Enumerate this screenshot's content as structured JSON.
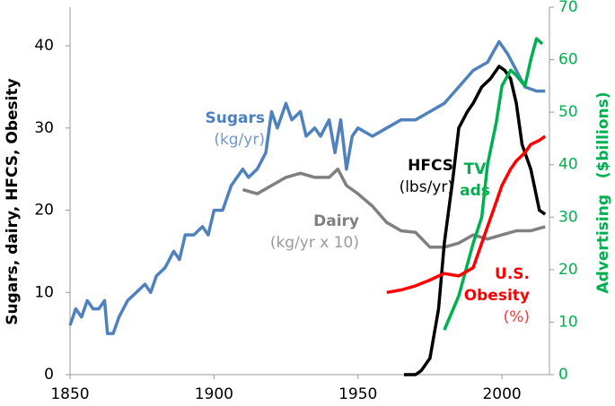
{
  "chart_data": {
    "type": "line",
    "y_label": "Sugars, dairy, HFCS, Obesity",
    "y2_label": "Advertising   ($billions)",
    "xlim": [
      1850,
      2016.5
    ],
    "xticks": [
      1850,
      1900,
      1950,
      2000
    ],
    "ylim": [
      0,
      44.7
    ],
    "yticks": [
      0,
      10,
      20,
      30,
      40
    ],
    "y2lim": [
      0,
      70
    ],
    "y2ticks": [
      0,
      10,
      20,
      30,
      40,
      50,
      60,
      70
    ],
    "y2_color": "#00b050",
    "series": [
      {
        "name": "Sugars",
        "unit": "(kg/yr)",
        "color": "#4f81bd",
        "unit_color": "#6f9ad0",
        "x": [
          1850,
          1852,
          1854,
          1856,
          1858,
          1860,
          1862,
          1863,
          1865,
          1867,
          1870,
          1873,
          1876,
          1878,
          1880,
          1883,
          1886,
          1888,
          1890,
          1893,
          1896,
          1898,
          1900,
          1903,
          1906,
          1910,
          1912,
          1915,
          1918,
          1920,
          1922,
          1925,
          1927,
          1930,
          1932,
          1935,
          1937,
          1940,
          1942,
          1944,
          1946,
          1948,
          1950,
          1955,
          1960,
          1965,
          1970,
          1975,
          1980,
          1985,
          1990,
          1995,
          1999,
          2002,
          2005,
          2008,
          2012,
          2015
        ],
        "values": [
          6,
          8,
          7,
          9,
          8,
          8,
          9,
          5,
          5,
          7,
          9,
          10,
          11,
          10,
          12,
          13,
          15,
          14,
          17,
          17,
          18,
          17,
          20,
          20,
          23,
          25,
          24,
          25,
          27,
          32,
          30,
          33,
          31,
          32,
          29,
          30,
          29,
          31,
          27,
          31,
          25,
          29,
          30,
          29,
          30,
          31,
          31,
          32,
          33,
          35,
          37,
          38,
          40.5,
          39,
          37,
          35,
          34.5,
          34.5
        ]
      },
      {
        "name": "Dairy",
        "unit": "(kg/yr x 10)",
        "color": "#808080",
        "unit_color": "#999999",
        "x": [
          1910,
          1915,
          1920,
          1925,
          1930,
          1935,
          1940,
          1943,
          1946,
          1950,
          1955,
          1960,
          1965,
          1970,
          1975,
          1980,
          1985,
          1990,
          1995,
          2000,
          2005,
          2010,
          2015
        ],
        "values": [
          22.5,
          22,
          23,
          24,
          24.5,
          24,
          24,
          25,
          23,
          22,
          20.5,
          18.5,
          17.5,
          17.3,
          15.5,
          15.5,
          16,
          17,
          16.5,
          17,
          17.5,
          17.5,
          18
        ]
      },
      {
        "name": "HFCS",
        "unit": "(lbs/yr)",
        "color": "#000000",
        "unit_color": "#000000",
        "x": [
          1966,
          1970,
          1972,
          1975,
          1978,
          1980,
          1983,
          1985,
          1988,
          1990,
          1993,
          1996,
          1999,
          2001,
          2003,
          2005,
          2007,
          2010,
          2013,
          2015
        ],
        "values": [
          0,
          0,
          0.5,
          2,
          8,
          16,
          24,
          30,
          32,
          33,
          35,
          36,
          37.5,
          37,
          36,
          33,
          28,
          25,
          20,
          19.5
        ]
      },
      {
        "name": "TV ads",
        "color": "#00b050",
        "axis": "y2",
        "x": [
          1980,
          1985,
          1990,
          1993,
          1995,
          1998,
          2000,
          2003,
          2005,
          2008,
          2010,
          2012,
          2014
        ],
        "values": [
          8.5,
          15,
          25,
          30,
          40,
          48,
          55,
          58,
          57,
          55,
          60,
          64,
          63
        ]
      },
      {
        "name": "U.S. Obesity",
        "unit": "(%)",
        "color": "#ff0000",
        "unit_color": "#ff3333",
        "x": [
          1960,
          1965,
          1970,
          1975,
          1978,
          1980,
          1985,
          1990,
          1992,
          1995,
          1997,
          2000,
          2003,
          2005,
          2008,
          2010,
          2013,
          2015
        ],
        "values": [
          10,
          10.3,
          10.8,
          11.5,
          12,
          12.3,
          12,
          13,
          15,
          18,
          20,
          23,
          25,
          26,
          27,
          28,
          28.5,
          29
        ]
      }
    ]
  }
}
